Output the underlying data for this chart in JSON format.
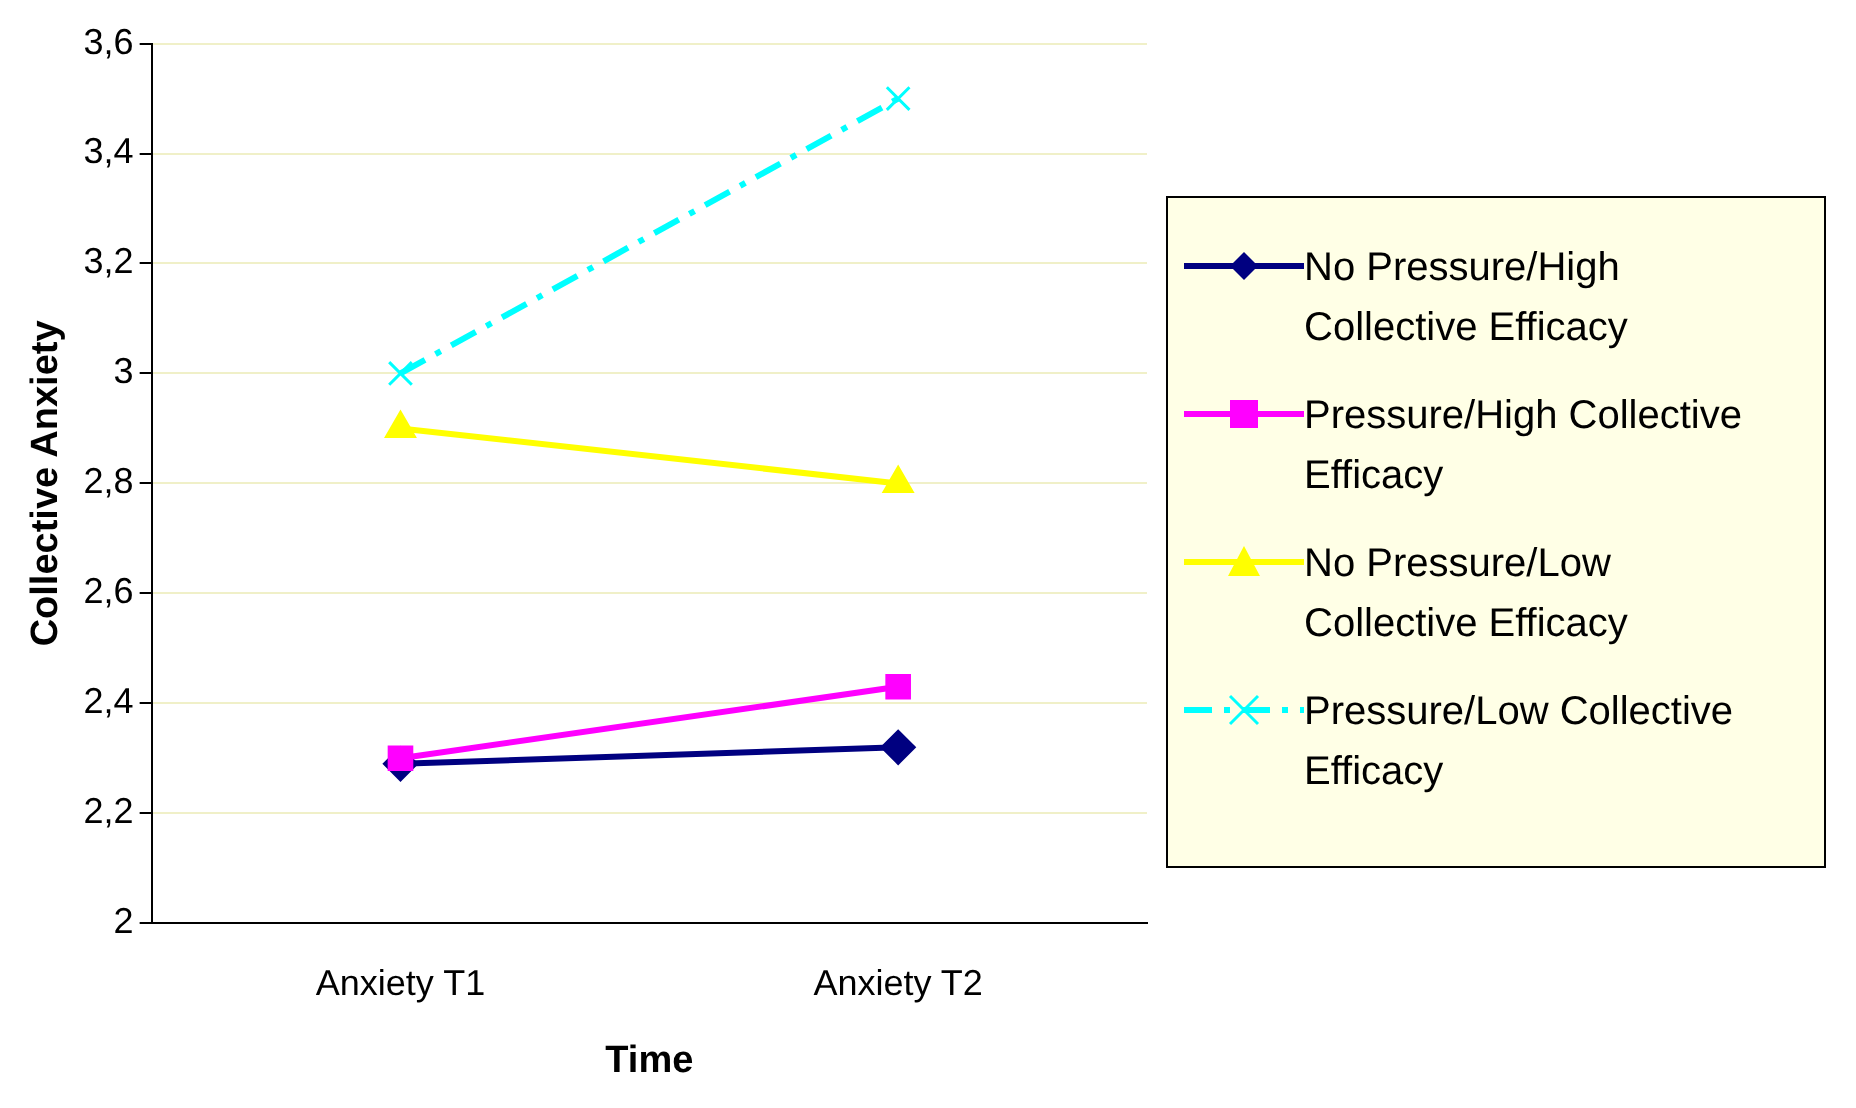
{
  "chart_data": {
    "type": "line",
    "xlabel": "Time",
    "ylabel": "Collective Anxiety",
    "categories": [
      "Anxiety T1",
      "Anxiety T2"
    ],
    "ylim": [
      2,
      3.6
    ],
    "yticks": [
      2,
      {
        "value": 2.2,
        "label": "2,2"
      },
      {
        "value": 2.4,
        "label": "2,4"
      },
      {
        "value": 2.6,
        "label": "2,6"
      },
      {
        "value": 2.8,
        "label": "2,8"
      },
      3,
      {
        "value": 3.2,
        "label": "3,2"
      },
      {
        "value": 3.4,
        "label": "3,4"
      },
      {
        "value": 3.6,
        "label": "3,6"
      }
    ],
    "grid": "y",
    "legend": "right",
    "series": [
      {
        "name": "No Pressure/High Collective Efficacy",
        "color": "#000080",
        "values": [
          2.29,
          2.32
        ],
        "marker": "diamond",
        "line_style": "solid"
      },
      {
        "name": "Pressure/High Collective Efficacy",
        "color": "#ff00ff",
        "values": [
          2.3,
          2.43
        ],
        "marker": "square",
        "line_style": "solid"
      },
      {
        "name": "No Pressure/Low Collective Efficacy",
        "color": "#ffff00",
        "values": [
          2.9,
          2.8
        ],
        "marker": "triangle",
        "line_style": "solid"
      },
      {
        "name": "Pressure/Low Collective Efficacy",
        "color": "#00ffff",
        "values": [
          3.0,
          3.5
        ],
        "marker": "cross",
        "line_style": "dashed"
      }
    ]
  }
}
